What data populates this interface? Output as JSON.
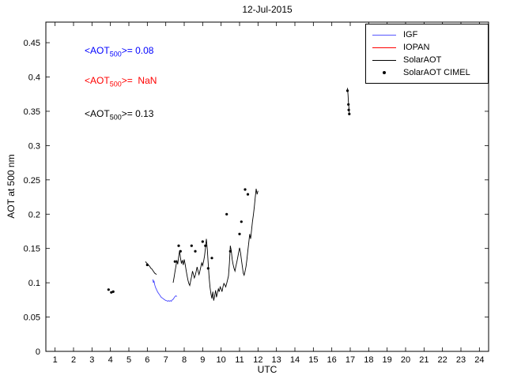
{
  "title": "12-Jul-2015",
  "xlabel": "UTC",
  "ylabel": "AOT at 500 nm",
  "annotations": [
    {
      "pre": "<AOT",
      "sub": "500",
      "post": ">= 0.08",
      "color": "#0000ff"
    },
    {
      "pre": "<AOT",
      "sub": "500",
      "post": ">=  NaN",
      "color": "#ff0000"
    },
    {
      "pre": "<AOT",
      "sub": "500",
      "post": ">= 0.13",
      "color": "#000000"
    }
  ],
  "legend": {
    "items": [
      {
        "label": "IGF",
        "color": "#5555ff",
        "type": "line"
      },
      {
        "label": "IOPAN",
        "color": "#ff0000",
        "type": "line"
      },
      {
        "label": "SolarAOT",
        "color": "#000000",
        "type": "line"
      },
      {
        "label": "SolarAOT CIMEL",
        "color": "#000000",
        "type": "dot"
      }
    ]
  },
  "chart_data": {
    "type": "line",
    "title": "12-Jul-2015",
    "xlabel": "UTC",
    "ylabel": "AOT at 500 nm",
    "xlim": [
      0.5,
      24.5
    ],
    "ylim": [
      0,
      0.48
    ],
    "grid": false,
    "legend_position": "top-right",
    "xticks": [
      1,
      2,
      3,
      4,
      5,
      6,
      7,
      8,
      9,
      10,
      11,
      12,
      13,
      14,
      15,
      16,
      17,
      18,
      19,
      20,
      21,
      22,
      23,
      24
    ],
    "yticks": [
      0,
      0.05,
      0.1,
      0.15,
      0.2,
      0.25,
      0.3,
      0.35,
      0.4,
      0.45
    ],
    "ytick_labels": [
      "0",
      "0.05",
      "0.1",
      "0.15",
      "0.2",
      "0.25",
      "0.3",
      "0.35",
      "0.4",
      "0.45"
    ],
    "series": [
      {
        "name": "IGF",
        "color": "#4444ff",
        "style": "line",
        "segments": [
          [
            [
              6.3,
              0.105
            ],
            [
              6.33,
              0.1
            ],
            [
              6.36,
              0.103
            ],
            [
              6.4,
              0.097
            ],
            [
              6.45,
              0.093
            ],
            [
              6.5,
              0.09
            ],
            [
              6.55,
              0.087
            ],
            [
              6.6,
              0.085
            ],
            [
              6.65,
              0.083
            ],
            [
              6.7,
              0.081
            ],
            [
              6.75,
              0.079
            ],
            [
              6.8,
              0.078
            ],
            [
              6.85,
              0.077
            ],
            [
              6.9,
              0.076
            ],
            [
              6.95,
              0.075
            ],
            [
              7.0,
              0.074
            ],
            [
              7.05,
              0.074
            ],
            [
              7.1,
              0.073
            ],
            [
              7.15,
              0.074
            ],
            [
              7.2,
              0.073
            ],
            [
              7.25,
              0.074
            ],
            [
              7.3,
              0.073
            ],
            [
              7.35,
              0.075
            ],
            [
              7.4,
              0.076
            ],
            [
              7.45,
              0.078
            ],
            [
              7.5,
              0.08
            ],
            [
              7.55,
              0.081
            ],
            [
              7.6,
              0.08
            ]
          ]
        ]
      },
      {
        "name": "IOPAN",
        "color": "#ff0000",
        "style": "line",
        "segments": []
      },
      {
        "name": "SolarAOT",
        "color": "#000000",
        "style": "line",
        "segments": [
          [
            [
              5.9,
              0.131
            ],
            [
              5.95,
              0.129
            ],
            [
              6.0,
              0.128
            ],
            [
              6.05,
              0.126
            ],
            [
              6.1,
              0.125
            ],
            [
              6.15,
              0.123
            ],
            [
              6.2,
              0.121
            ],
            [
              6.25,
              0.12
            ],
            [
              6.3,
              0.118
            ],
            [
              6.35,
              0.116
            ],
            [
              6.4,
              0.114
            ],
            [
              6.45,
              0.113
            ],
            [
              6.5,
              0.112
            ]
          ],
          [
            [
              7.4,
              0.1
            ],
            [
              7.45,
              0.108
            ],
            [
              7.5,
              0.116
            ],
            [
              7.55,
              0.124
            ],
            [
              7.6,
              0.133
            ],
            [
              7.65,
              0.127
            ],
            [
              7.7,
              0.138
            ],
            [
              7.75,
              0.147
            ],
            [
              7.8,
              0.136
            ],
            [
              7.85,
              0.128
            ],
            [
              7.9,
              0.133
            ],
            [
              7.95,
              0.126
            ],
            [
              8.0,
              0.134
            ],
            [
              8.05,
              0.127
            ],
            [
              8.1,
              0.119
            ],
            [
              8.15,
              0.111
            ],
            [
              8.2,
              0.104
            ],
            [
              8.25,
              0.099
            ],
            [
              8.3,
              0.096
            ],
            [
              8.35,
              0.103
            ],
            [
              8.4,
              0.109
            ],
            [
              8.45,
              0.117
            ],
            [
              8.5,
              0.112
            ],
            [
              8.55,
              0.107
            ],
            [
              8.6,
              0.111
            ],
            [
              8.65,
              0.117
            ],
            [
              8.7,
              0.123
            ],
            [
              8.75,
              0.117
            ],
            [
              8.8,
              0.112
            ],
            [
              8.85,
              0.117
            ],
            [
              8.9,
              0.123
            ],
            [
              8.95,
              0.129
            ],
            [
              9.0,
              0.125
            ],
            [
              9.05,
              0.131
            ],
            [
              9.1,
              0.139
            ],
            [
              9.15,
              0.15
            ],
            [
              9.2,
              0.164
            ],
            [
              9.25,
              0.149
            ],
            [
              9.3,
              0.129
            ],
            [
              9.35,
              0.108
            ],
            [
              9.4,
              0.093
            ],
            [
              9.45,
              0.084
            ],
            [
              9.5,
              0.077
            ],
            [
              9.55,
              0.087
            ],
            [
              9.6,
              0.074
            ],
            [
              9.65,
              0.081
            ],
            [
              9.7,
              0.089
            ],
            [
              9.75,
              0.079
            ],
            [
              9.8,
              0.085
            ],
            [
              9.85,
              0.091
            ],
            [
              9.9,
              0.087
            ],
            [
              9.95,
              0.094
            ],
            [
              10.0,
              0.091
            ],
            [
              10.05,
              0.087
            ],
            [
              10.1,
              0.094
            ],
            [
              10.15,
              0.099
            ],
            [
              10.2,
              0.097
            ],
            [
              10.25,
              0.094
            ],
            [
              10.3,
              0.099
            ],
            [
              10.35,
              0.104
            ],
            [
              10.4,
              0.11
            ],
            [
              10.45,
              0.129
            ],
            [
              10.5,
              0.154
            ],
            [
              10.55,
              0.147
            ],
            [
              10.6,
              0.134
            ],
            [
              10.65,
              0.127
            ],
            [
              10.7,
              0.121
            ],
            [
              10.75,
              0.117
            ],
            [
              10.8,
              0.124
            ],
            [
              10.85,
              0.13
            ],
            [
              10.9,
              0.137
            ],
            [
              10.95,
              0.144
            ],
            [
              11.0,
              0.151
            ],
            [
              11.05,
              0.144
            ],
            [
              11.1,
              0.134
            ],
            [
              11.15,
              0.124
            ],
            [
              11.2,
              0.114
            ],
            [
              11.25,
              0.111
            ],
            [
              11.3,
              0.117
            ],
            [
              11.35,
              0.124
            ],
            [
              11.4,
              0.134
            ],
            [
              11.45,
              0.147
            ],
            [
              11.5,
              0.159
            ],
            [
              11.55,
              0.171
            ],
            [
              11.6,
              0.164
            ],
            [
              11.65,
              0.177
            ],
            [
              11.7,
              0.189
            ],
            [
              11.75,
              0.199
            ],
            [
              11.8,
              0.211
            ],
            [
              11.85,
              0.224
            ],
            [
              11.9,
              0.237
            ],
            [
              11.95,
              0.229
            ],
            [
              12.0,
              0.234
            ]
          ],
          [
            [
              16.85,
              0.384
            ],
            [
              16.88,
              0.374
            ],
            [
              16.9,
              0.364
            ],
            [
              16.93,
              0.354
            ],
            [
              16.95,
              0.347
            ]
          ]
        ]
      },
      {
        "name": "SolarAOT CIMEL",
        "color": "#000000",
        "style": "scatter",
        "points": [
          [
            3.9,
            0.09
          ],
          [
            4.05,
            0.086
          ],
          [
            4.15,
            0.087
          ],
          [
            6.0,
            0.126
          ],
          [
            7.5,
            0.131
          ],
          [
            7.7,
            0.154
          ],
          [
            7.8,
            0.146
          ],
          [
            8.4,
            0.154
          ],
          [
            8.6,
            0.146
          ],
          [
            9.0,
            0.16
          ],
          [
            9.15,
            0.154
          ],
          [
            9.3,
            0.121
          ],
          [
            9.5,
            0.136
          ],
          [
            10.3,
            0.2
          ],
          [
            10.5,
            0.146
          ],
          [
            11.0,
            0.171
          ],
          [
            11.1,
            0.189
          ],
          [
            11.3,
            0.236
          ],
          [
            11.45,
            0.229
          ],
          [
            16.85,
            0.38
          ],
          [
            16.9,
            0.36
          ],
          [
            16.92,
            0.352
          ],
          [
            16.95,
            0.346
          ]
        ]
      }
    ]
  }
}
